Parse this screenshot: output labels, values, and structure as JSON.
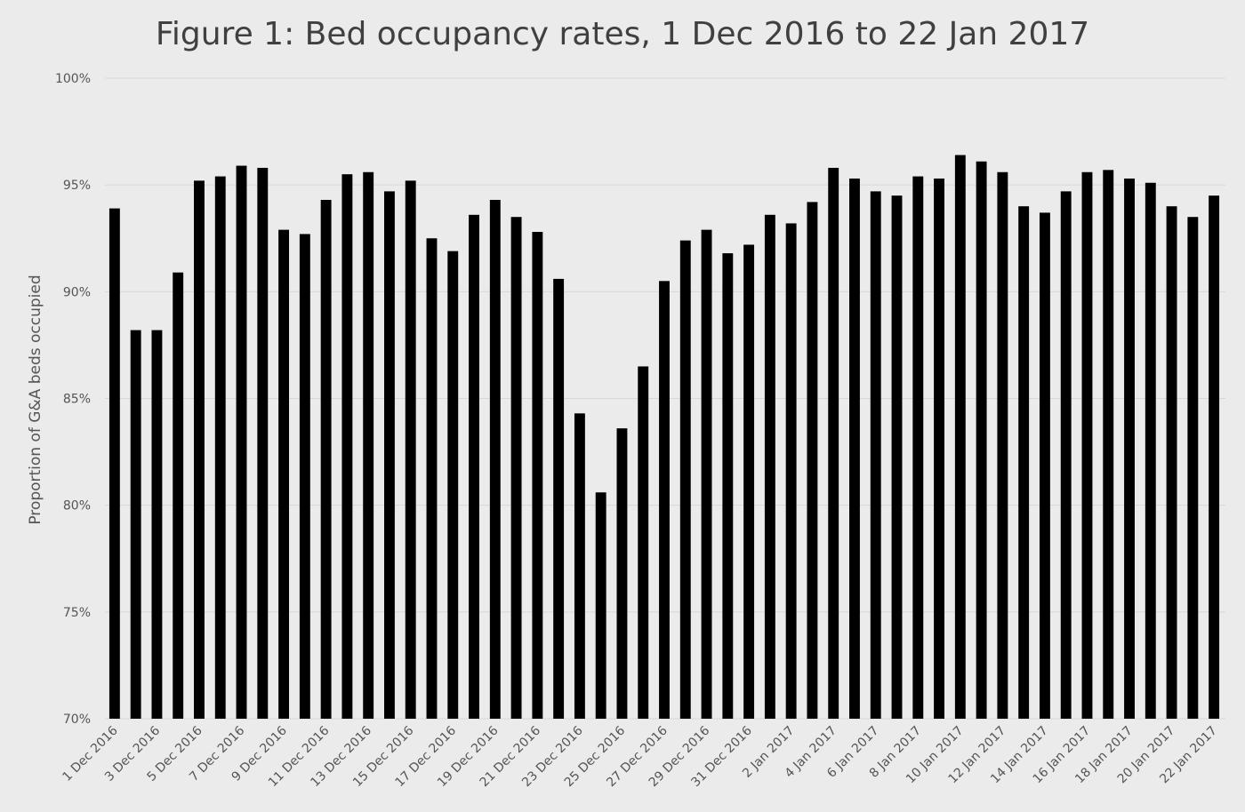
{
  "chart_data": {
    "type": "bar",
    "title": "Figure 1: Bed occupancy rates, 1 Dec 2016 to 22 Jan 2017",
    "xlabel": "",
    "ylabel": "Proportion of G&A beds occupied",
    "ylim": [
      70,
      100
    ],
    "yticks": [
      "70%",
      "75%",
      "80%",
      "85%",
      "90%",
      "95%",
      "100%"
    ],
    "ytick_values": [
      70,
      75,
      80,
      85,
      90,
      95,
      100
    ],
    "grid": true,
    "bar_color": "#000000",
    "background_color": "#ebebeb",
    "categories": [
      "1 Dec 2016",
      "2 Dec 2016",
      "3 Dec 2016",
      "4 Dec 2016",
      "5 Dec 2016",
      "6 Dec 2016",
      "7 Dec 2016",
      "8 Dec 2016",
      "9 Dec 2016",
      "10 Dec 2016",
      "11 Dec 2016",
      "12 Dec 2016",
      "13 Dec 2016",
      "14 Dec 2016",
      "15 Dec 2016",
      "16 Dec 2016",
      "17 Dec 2016",
      "18 Dec 2016",
      "19 Dec 2016",
      "20 Dec 2016",
      "21 Dec 2016",
      "22 Dec 2016",
      "23 Dec 2016",
      "24 Dec 2016",
      "25 Dec 2016",
      "26 Dec 2016",
      "27 Dec 2016",
      "28 Dec 2016",
      "29 Dec 2016",
      "30 Dec 2016",
      "31 Dec 2016",
      "1 Jan 2017",
      "2 Jan 2017",
      "3 Jan 2017",
      "4 Jan 2017",
      "5 Jan 2017",
      "6 Jan 2017",
      "7 Jan 2017",
      "8 Jan 2017",
      "9 Jan 2017",
      "10 Jan 2017",
      "11 Jan 2017",
      "12 Jan 2017",
      "13 Jan 2017",
      "14 Jan 2017",
      "15 Jan 2017",
      "16 Jan 2017",
      "17 Jan 2017",
      "18 Jan 2017",
      "19 Jan 2017",
      "20 Jan 2017",
      "21 Jan 2017",
      "22 Jan 2017"
    ],
    "tick_every": 2,
    "values": [
      93.9,
      88.2,
      88.2,
      90.9,
      95.2,
      95.4,
      95.9,
      95.8,
      92.9,
      92.7,
      94.3,
      95.5,
      95.6,
      94.7,
      95.2,
      92.5,
      91.9,
      93.6,
      94.3,
      93.5,
      92.8,
      90.6,
      84.3,
      80.6,
      83.6,
      86.5,
      90.5,
      92.4,
      92.9,
      91.8,
      92.2,
      93.6,
      93.2,
      94.2,
      95.8,
      95.3,
      94.7,
      94.5,
      95.4,
      95.3,
      96.4,
      96.1,
      95.6,
      94.0,
      93.7,
      94.7,
      95.6,
      95.7,
      95.3,
      95.1,
      94.0,
      93.5,
      94.5
    ]
  }
}
